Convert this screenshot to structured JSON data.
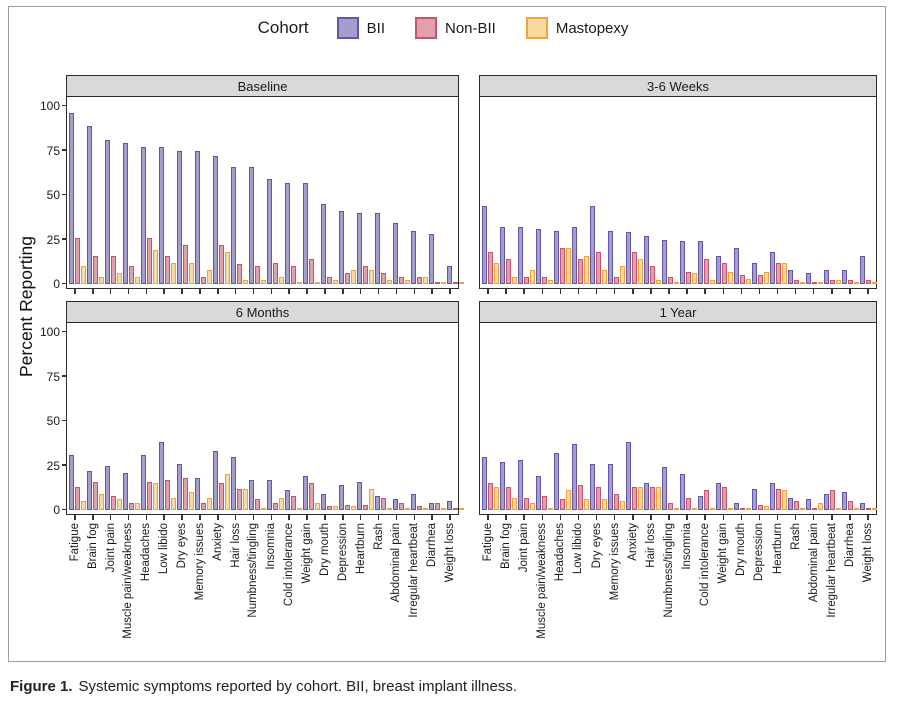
{
  "figure": {
    "legend": {
      "title": "Cohort",
      "series": [
        {
          "name": "BII",
          "fill": "#a59dd0",
          "stroke": "#6056a5"
        },
        {
          "name": "Non-BII",
          "fill": "#e2a0ac",
          "stroke": "#c2556c"
        },
        {
          "name": "Mastopexy",
          "fill": "#fbd9a0",
          "stroke": "#eda33f"
        }
      ]
    },
    "ylabel": "Percent Reporting",
    "yticks": [
      0,
      25,
      50,
      75,
      100
    ],
    "caption_label": "Figure 1.",
    "caption_text": "Systemic symptoms reported by cohort. BII, breast implant illness."
  },
  "chart_data": {
    "type": "bar",
    "grouping": "grouped-bars-by-cohort",
    "ylim": [
      0,
      100
    ],
    "grid": false,
    "legend_position": "top",
    "categories": [
      "Fatigue",
      "Brain fog",
      "Joint pain",
      "Muscle pain/weakness",
      "Headaches",
      "Low libido",
      "Dry eyes",
      "Memory issues",
      "Anxiety",
      "Hair loss",
      "Numbness/tingling",
      "Insomnia",
      "Cold intolerance",
      "Weight gain",
      "Dry mouth",
      "Depression",
      "Heartburn",
      "Rash",
      "Abdominal pain",
      "Irregular heartbeat",
      "Diarrhea",
      "Weight loss"
    ],
    "panels": [
      {
        "title": "Baseline",
        "series": [
          {
            "name": "BII",
            "values": [
              96,
              89,
              81,
              79,
              77,
              77,
              75,
              75,
              72,
              66,
              66,
              59,
              57,
              57,
              45,
              41,
              40,
              40,
              34,
              30,
              28,
              10
            ]
          },
          {
            "name": "Non-BII",
            "values": [
              26,
              16,
              16,
              10,
              26,
              16,
              22,
              4,
              22,
              11,
              10,
              12,
              10,
              14,
              4,
              6,
              10,
              6,
              4,
              4,
              1,
              1
            ]
          },
          {
            "name": "Mastopexy",
            "values": [
              10,
              4,
              6,
              4,
              19,
              12,
              12,
              8,
              18,
              2,
              2,
              4,
              1,
              1,
              2,
              8,
              8,
              2,
              2,
              4,
              1,
              1
            ]
          }
        ]
      },
      {
        "title": "3-6 Weeks",
        "series": [
          {
            "name": "BII",
            "values": [
              44,
              32,
              32,
              31,
              30,
              32,
              44,
              30,
              29,
              27,
              25,
              24,
              24,
              16,
              20,
              12,
              18,
              8,
              6,
              8,
              8,
              16
            ]
          },
          {
            "name": "Non-BII",
            "values": [
              18,
              14,
              4,
              4,
              20,
              14,
              18,
              4,
              18,
              10,
              4,
              7,
              14,
              12,
              5,
              5,
              12,
              2,
              1,
              2,
              2,
              2
            ]
          },
          {
            "name": "Mastopexy",
            "values": [
              12,
              4,
              8,
              2,
              20,
              16,
              8,
              10,
              14,
              2,
              1,
              6,
              2,
              7,
              3,
              7,
              12,
              1,
              1,
              2,
              1,
              1
            ]
          }
        ]
      },
      {
        "title": "6 Months",
        "series": [
          {
            "name": "BII",
            "values": [
              31,
              22,
              25,
              21,
              31,
              38,
              26,
              18,
              33,
              30,
              17,
              17,
              11,
              19,
              9,
              14,
              16,
              8,
              6,
              9,
              4,
              5
            ]
          },
          {
            "name": "Non-BII",
            "values": [
              13,
              16,
              8,
              4,
              16,
              17,
              18,
              4,
              15,
              12,
              6,
              4,
              8,
              15,
              2,
              3,
              3,
              7,
              4,
              2,
              4,
              1
            ]
          },
          {
            "name": "Mastopexy",
            "values": [
              5,
              9,
              6,
              4,
              15,
              7,
              10,
              7,
              20,
              12,
              1,
              7,
              1,
              4,
              2,
              2,
              12,
              1,
              1,
              1,
              1,
              0
            ]
          }
        ]
      },
      {
        "title": "1 Year",
        "series": [
          {
            "name": "BII",
            "values": [
              30,
              27,
              28,
              19,
              32,
              37,
              26,
              26,
              38,
              15,
              24,
              20,
              8,
              15,
              4,
              12,
              15,
              7,
              6,
              9,
              10,
              4
            ]
          },
          {
            "name": "Non-BII",
            "values": [
              15,
              13,
              7,
              8,
              6,
              14,
              13,
              9,
              13,
              13,
              4,
              7,
              11,
              13,
              1,
              3,
              12,
              5,
              1,
              11,
              5,
              1
            ]
          },
          {
            "name": "Mastopexy",
            "values": [
              13,
              7,
              4,
              1,
              11,
              6,
              6,
              5,
              13,
              13,
              1,
              1,
              1,
              1,
              0,
              2,
              11,
              1,
              4,
              1,
              1,
              0
            ]
          }
        ]
      }
    ]
  }
}
